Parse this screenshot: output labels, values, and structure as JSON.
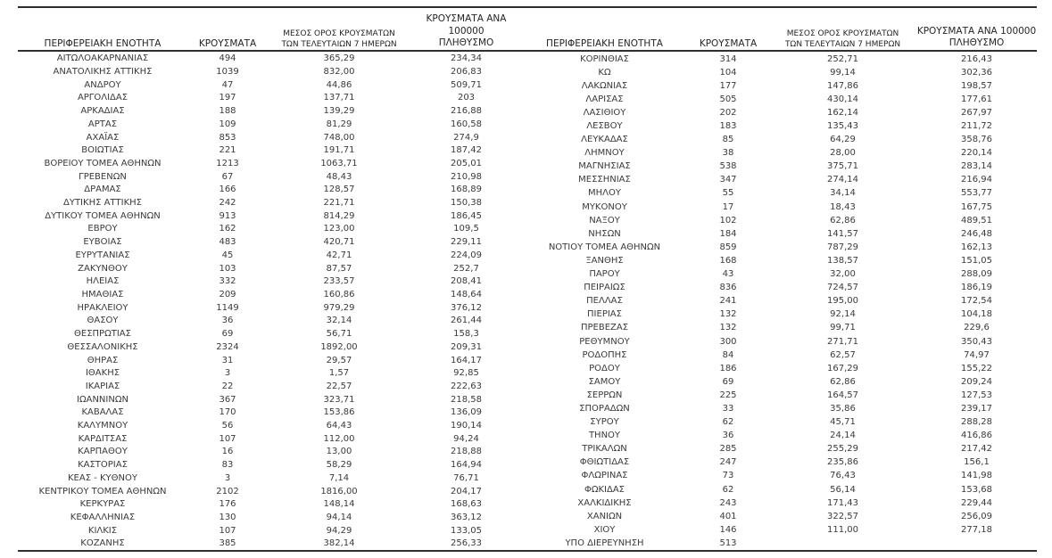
{
  "page": {
    "background_color": "#ffffff",
    "text_color": "#3a3a3a",
    "rule_color": "#2f2f2f"
  },
  "table": {
    "headers": {
      "region": "ΠΕΡΙΦΕΡΕΙΑΚΗ ΕΝΟΤΗΤΑ",
      "cases": "ΚΡΟΥΣΜΑΤΑ",
      "avg7_line1": "ΜΕΣΟΣ ΟΡΟΣ ΚΡΟΥΣΜΑΤΩΝ",
      "avg7_line2": "ΤΩΝ ΤΕΛΕΥΤΑΙΩΝ 7 ΗΜΕΡΩΝ",
      "per100k_line1": "ΚΡΟΥΣΜΑΤΑ ΑΝΑ 100000",
      "per100k_line2": "ΠΛΗΘΥΣΜΟ"
    },
    "left_rows": [
      [
        "ΑΙΤΩΛΟΑΚΑΡΝΑΝΙΑΣ",
        "494",
        "365,29",
        "234,34"
      ],
      [
        "ΑΝΑΤΟΛΙΚΗΣ ΑΤΤΙΚΗΣ",
        "1039",
        "832,00",
        "206,83"
      ],
      [
        "ΑΝΔΡΟΥ",
        "47",
        "44,86",
        "509,71"
      ],
      [
        "ΑΡΓΟΛΙΔΑΣ",
        "197",
        "137,71",
        "203"
      ],
      [
        "ΑΡΚΑΔΙΑΣ",
        "188",
        "139,29",
        "216,88"
      ],
      [
        "ΑΡΤΑΣ",
        "109",
        "81,29",
        "160,58"
      ],
      [
        "ΑΧΑΪΑΣ",
        "853",
        "748,00",
        "274,9"
      ],
      [
        "ΒΟΙΩΤΙΑΣ",
        "221",
        "191,71",
        "187,42"
      ],
      [
        "ΒΟΡΕΙΟΥ ΤΟΜΕΑ ΑΘΗΝΩΝ",
        "1213",
        "1063,71",
        "205,01"
      ],
      [
        "ΓΡΕΒΕΝΩΝ",
        "67",
        "48,43",
        "210,98"
      ],
      [
        "ΔΡΑΜΑΣ",
        "166",
        "128,57",
        "168,89"
      ],
      [
        "ΔΥΤΙΚΗΣ ΑΤΤΙΚΗΣ",
        "242",
        "221,71",
        "150,38"
      ],
      [
        "ΔΥΤΙΚΟΥ ΤΟΜΕΑ ΑΘΗΝΩΝ",
        "913",
        "814,29",
        "186,45"
      ],
      [
        "ΕΒΡΟΥ",
        "162",
        "123,00",
        "109,5"
      ],
      [
        "ΕΥΒΟΙΑΣ",
        "483",
        "420,71",
        "229,11"
      ],
      [
        "ΕΥΡΥΤΑΝΙΑΣ",
        "45",
        "42,71",
        "224,09"
      ],
      [
        "ΖΑΚΥΝΘΟΥ",
        "103",
        "87,57",
        "252,7"
      ],
      [
        "ΗΛΕΙΑΣ",
        "332",
        "233,57",
        "208,41"
      ],
      [
        "ΗΜΑΘΙΑΣ",
        "209",
        "160,86",
        "148,64"
      ],
      [
        "ΗΡΑΚΛΕΙΟΥ",
        "1149",
        "979,29",
        "376,12"
      ],
      [
        "ΘΑΣΟΥ",
        "36",
        "32,14",
        "261,44"
      ],
      [
        "ΘΕΣΠΡΩΤΙΑΣ",
        "69",
        "56,71",
        "158,3"
      ],
      [
        "ΘΕΣΣΑΛΟΝΙΚΗΣ",
        "2324",
        "1892,00",
        "209,31"
      ],
      [
        "ΘΗΡΑΣ",
        "31",
        "29,57",
        "164,17"
      ],
      [
        "ΙΘΑΚΗΣ",
        "3",
        "1,57",
        "92,85"
      ],
      [
        "ΙΚΑΡΙΑΣ",
        "22",
        "22,57",
        "222,63"
      ],
      [
        "ΙΩΑΝΝΙΝΩΝ",
        "367",
        "323,71",
        "218,58"
      ],
      [
        "ΚΑΒΑΛΑΣ",
        "170",
        "153,86",
        "136,09"
      ],
      [
        "ΚΑΛΥΜΝΟΥ",
        "56",
        "64,43",
        "190,14"
      ],
      [
        "ΚΑΡΔΙΤΣΑΣ",
        "107",
        "112,00",
        "94,24"
      ],
      [
        "ΚΑΡΠΑΘΟΥ",
        "16",
        "13,00",
        "218,88"
      ],
      [
        "ΚΑΣΤΟΡΙΑΣ",
        "83",
        "58,29",
        "164,94"
      ],
      [
        "ΚΕΑΣ - ΚΥΘΝΟΥ",
        "3",
        "7,14",
        "76,71"
      ],
      [
        "ΚΕΝΤΡΙΚΟΥ ΤΟΜΕΑ ΑΘΗΝΩΝ",
        "2102",
        "1816,00",
        "204,17"
      ],
      [
        "ΚΕΡΚΥΡΑΣ",
        "176",
        "148,14",
        "168,63"
      ],
      [
        "ΚΕΦΑΛΛΗΝΙΑΣ",
        "130",
        "94,14",
        "363,12"
      ],
      [
        "ΚΙΛΚΙΣ",
        "107",
        "94,29",
        "133,05"
      ],
      [
        "ΚΟΖΑΝΗΣ",
        "385",
        "382,14",
        "256,33"
      ]
    ],
    "right_rows": [
      [
        "ΚΟΡΙΝΘΙΑΣ",
        "314",
        "252,71",
        "216,43"
      ],
      [
        "ΚΩ",
        "104",
        "99,14",
        "302,36"
      ],
      [
        "ΛΑΚΩΝΙΑΣ",
        "177",
        "147,86",
        "198,57"
      ],
      [
        "ΛΑΡΙΣΑΣ",
        "505",
        "430,14",
        "177,61"
      ],
      [
        "ΛΑΣΙΘΙΟΥ",
        "202",
        "162,14",
        "267,97"
      ],
      [
        "ΛΕΣΒΟΥ",
        "183",
        "135,43",
        "211,72"
      ],
      [
        "ΛΕΥΚΑΔΑΣ",
        "85",
        "64,29",
        "358,76"
      ],
      [
        "ΛΗΜΝΟΥ",
        "38",
        "28,00",
        "220,14"
      ],
      [
        "ΜΑΓΝΗΣΙΑΣ",
        "538",
        "375,71",
        "283,14"
      ],
      [
        "ΜΕΣΣΗΝΙΑΣ",
        "347",
        "274,14",
        "216,94"
      ],
      [
        "ΜΗΛΟΥ",
        "55",
        "34,14",
        "553,77"
      ],
      [
        "ΜΥΚΟΝΟΥ",
        "17",
        "18,43",
        "167,75"
      ],
      [
        "ΝΑΞΟΥ",
        "102",
        "62,86",
        "489,51"
      ],
      [
        "ΝΗΣΩΝ",
        "184",
        "141,57",
        "246,48"
      ],
      [
        "ΝΟΤΙΟΥ ΤΟΜΕΑ ΑΘΗΝΩΝ",
        "859",
        "787,29",
        "162,13"
      ],
      [
        "ΞΑΝΘΗΣ",
        "168",
        "138,57",
        "151,05"
      ],
      [
        "ΠΑΡΟΥ",
        "43",
        "32,00",
        "288,09"
      ],
      [
        "ΠΕΙΡΑΙΩΣ",
        "836",
        "724,57",
        "186,19"
      ],
      [
        "ΠΕΛΛΑΣ",
        "241",
        "195,00",
        "172,54"
      ],
      [
        "ΠΙΕΡΙΑΣ",
        "132",
        "92,14",
        "104,18"
      ],
      [
        "ΠΡΕΒΕΖΑΣ",
        "132",
        "99,71",
        "229,6"
      ],
      [
        "ΡΕΘΥΜΝΟΥ",
        "300",
        "271,71",
        "350,43"
      ],
      [
        "ΡΟΔΟΠΗΣ",
        "84",
        "62,57",
        "74,97"
      ],
      [
        "ΡΟΔΟΥ",
        "186",
        "167,29",
        "155,22"
      ],
      [
        "ΣΑΜΟΥ",
        "69",
        "62,86",
        "209,24"
      ],
      [
        "ΣΕΡΡΩΝ",
        "225",
        "164,57",
        "127,53"
      ],
      [
        "ΣΠΟΡΑΔΩΝ",
        "33",
        "35,86",
        "239,17"
      ],
      [
        "ΣΥΡΟΥ",
        "62",
        "45,71",
        "288,28"
      ],
      [
        "ΤΗΝΟΥ",
        "36",
        "24,14",
        "416,86"
      ],
      [
        "ΤΡΙΚΑΛΩΝ",
        "285",
        "255,29",
        "217,42"
      ],
      [
        "ΦΘΙΩΤΙΔΑΣ",
        "247",
        "235,86",
        "156,1"
      ],
      [
        "ΦΛΩΡΙΝΑΣ",
        "73",
        "76,43",
        "141,98"
      ],
      [
        "ΦΩΚΙΔΑΣ",
        "62",
        "56,14",
        "153,68"
      ],
      [
        "ΧΑΛΚΙΔΙΚΗΣ",
        "243",
        "171,43",
        "229,44"
      ],
      [
        "ΧΑΝΙΩΝ",
        "401",
        "322,57",
        "256,09"
      ],
      [
        "ΧΙΟΥ",
        "146",
        "111,00",
        "277,18"
      ],
      [
        "ΥΠΟ ΔΙΕΡΕΥΝΗΣΗ",
        "513",
        "",
        ""
      ]
    ]
  }
}
